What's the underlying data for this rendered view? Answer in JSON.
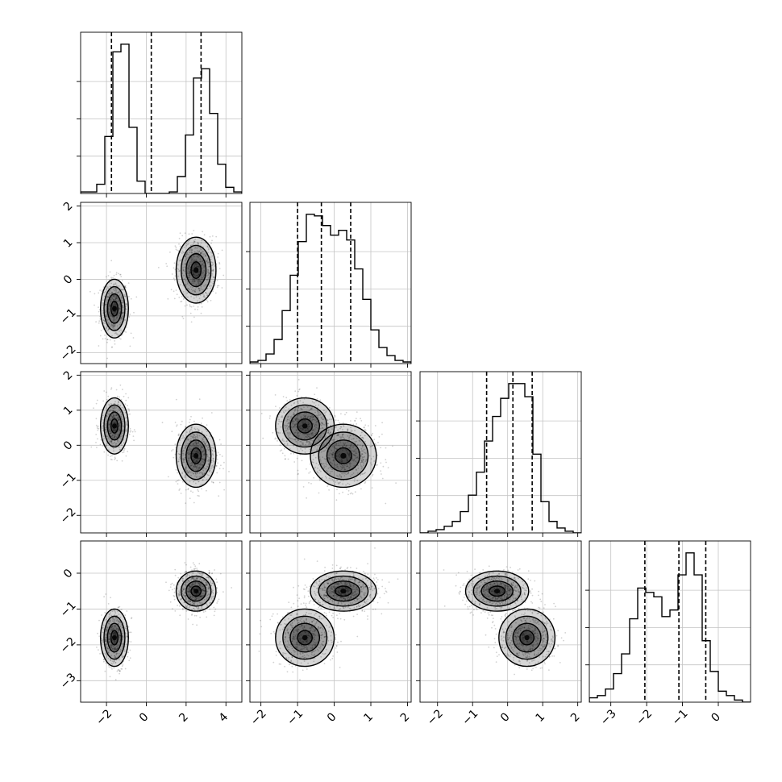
{
  "chart_data": {
    "type": "corner",
    "title": "",
    "variables": [
      "",
      "",
      "",
      ""
    ],
    "axis_ranges": [
      [
        -3.3,
        4.8
      ],
      [
        -2.3,
        2.1
      ],
      [
        -2.5,
        2.1
      ],
      [
        -3.6,
        0.9
      ]
    ],
    "ticks": [
      [
        -2,
        0,
        2,
        4
      ],
      [
        -2,
        -1,
        0,
        1,
        2
      ],
      [
        -2,
        -1,
        0,
        1,
        2
      ],
      [
        -3,
        -2,
        -1,
        0
      ]
    ],
    "tick_labels": [
      [
        "−2",
        "0",
        "2",
        "4"
      ],
      [
        "−2",
        "−1",
        "0",
        "1",
        "2"
      ],
      [
        "−2",
        "−1",
        "0",
        "1",
        "2"
      ],
      [
        "−3",
        "−2",
        "−1",
        "0"
      ]
    ],
    "grid": true,
    "quantiles": [
      [
        -1.75,
        0.25,
        2.75
      ],
      [
        -1.0,
        -0.35,
        0.45
      ],
      [
        -0.6,
        0.15,
        0.7
      ],
      [
        -2.05,
        -1.1,
        -0.35
      ]
    ],
    "histograms": [
      {
        "bin_start": -3.3,
        "bin_width": 0.405,
        "counts": [
          0.01,
          0.01,
          0.06,
          0.37,
          0.92,
          0.97,
          0.43,
          0.08,
          0.0,
          0.0,
          0.0,
          0.01,
          0.11,
          0.38,
          0.75,
          0.81,
          0.52,
          0.19,
          0.04,
          0.01
        ]
      },
      {
        "bin_start": -2.3,
        "bin_width": 0.22,
        "counts": [
          0.01,
          0.02,
          0.06,
          0.15,
          0.33,
          0.55,
          0.76,
          0.93,
          0.92,
          0.86,
          0.8,
          0.83,
          0.77,
          0.59,
          0.4,
          0.21,
          0.1,
          0.05,
          0.02,
          0.01
        ]
      },
      {
        "bin_start": -2.5,
        "bin_width": 0.23,
        "counts": [
          0.0,
          0.01,
          0.02,
          0.04,
          0.07,
          0.13,
          0.23,
          0.37,
          0.56,
          0.71,
          0.82,
          0.91,
          0.91,
          0.83,
          0.48,
          0.19,
          0.07,
          0.03,
          0.01,
          0.0
        ]
      },
      {
        "bin_start": -3.6,
        "bin_width": 0.225,
        "counts": [
          0.02,
          0.03,
          0.06,
          0.13,
          0.22,
          0.38,
          0.52,
          0.5,
          0.48,
          0.39,
          0.42,
          0.58,
          0.68,
          0.58,
          0.28,
          0.14,
          0.05,
          0.03,
          0.01,
          0.0
        ]
      }
    ],
    "clusters": [
      {
        "mean": [
          -1.6,
          -0.8,
          0.55,
          -1.8
        ],
        "sd": [
          0.35,
          0.4,
          0.4,
          0.4
        ],
        "weight": 0.45
      },
      {
        "mean": [
          2.5,
          0.25,
          -0.3,
          -0.5
        ],
        "sd": [
          0.5,
          0.45,
          0.45,
          0.28
        ],
        "weight": 0.55
      }
    ]
  }
}
